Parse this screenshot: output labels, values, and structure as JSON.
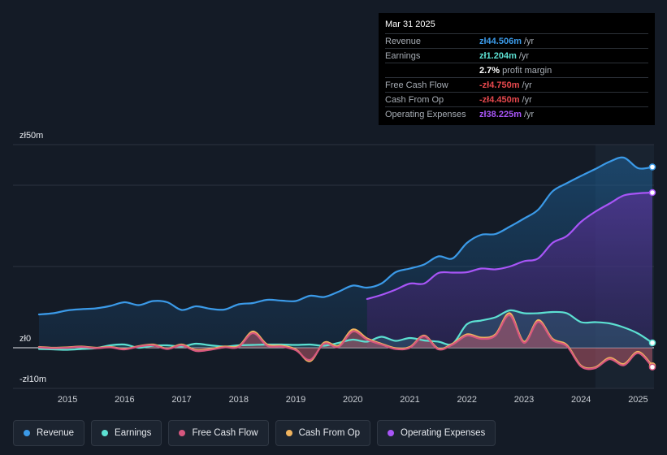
{
  "chart_data": {
    "type": "area",
    "currency_prefix": "zł",
    "y_axis": {
      "top_label": "zł50m",
      "zero_label": "zł0",
      "bottom_label": "-zł10m",
      "ylim": [
        -10,
        50
      ]
    },
    "x_axis": {
      "ticks": [
        "2015",
        "2016",
        "2017",
        "2018",
        "2019",
        "2020",
        "2021",
        "2022",
        "2023",
        "2024",
        "2025"
      ],
      "xlim": [
        2014.5,
        2025.25
      ]
    },
    "highlight_start": 2024.25,
    "colors": {
      "revenue": "#3b9ae8",
      "earnings": "#5ce0d2",
      "fcf": "#d6577f",
      "cfo": "#f0b35e",
      "opex": "#a855f7"
    },
    "series": [
      {
        "key": "revenue",
        "name": "Revenue",
        "x": [
          2014.5,
          2014.75,
          2015,
          2015.25,
          2015.5,
          2015.75,
          2016,
          2016.25,
          2016.5,
          2016.75,
          2017,
          2017.25,
          2017.5,
          2017.75,
          2018,
          2018.25,
          2018.5,
          2018.75,
          2019,
          2019.25,
          2019.5,
          2019.75,
          2020,
          2020.25,
          2020.5,
          2020.75,
          2021,
          2021.25,
          2021.5,
          2021.75,
          2022,
          2022.25,
          2022.5,
          2022.75,
          2023,
          2023.25,
          2023.5,
          2023.75,
          2024,
          2024.25,
          2024.5,
          2024.75,
          2025,
          2025.25
        ],
        "values": [
          8.2,
          8.5,
          9.2,
          9.5,
          9.7,
          10.3,
          11.2,
          10.5,
          11.5,
          11.2,
          9.3,
          10.2,
          9.6,
          9.4,
          10.7,
          11.0,
          11.8,
          11.6,
          11.5,
          12.8,
          12.5,
          13.8,
          15.3,
          14.8,
          15.8,
          18.6,
          19.5,
          20.5,
          22.5,
          22.0,
          25.8,
          27.8,
          28.0,
          29.8,
          31.8,
          34.0,
          38.5,
          40.5,
          42.3,
          44.0,
          45.8,
          46.8,
          44.2,
          44.5
        ]
      },
      {
        "key": "opex",
        "name": "Operating Expenses",
        "x": [
          2020.25,
          2020.5,
          2020.75,
          2021,
          2021.25,
          2021.5,
          2021.75,
          2022,
          2022.25,
          2022.5,
          2022.75,
          2023,
          2023.25,
          2023.5,
          2023.75,
          2024,
          2024.25,
          2024.5,
          2024.75,
          2025,
          2025.25
        ],
        "values": [
          12.0,
          13.0,
          14.3,
          15.8,
          15.8,
          18.4,
          18.5,
          18.6,
          19.5,
          19.3,
          20.0,
          21.3,
          22.0,
          25.8,
          27.5,
          31.0,
          33.5,
          35.5,
          37.5,
          38.0,
          38.2
        ]
      },
      {
        "key": "earnings",
        "name": "Earnings",
        "x": [
          2014.5,
          2014.75,
          2015,
          2015.25,
          2015.5,
          2015.75,
          2016,
          2016.25,
          2016.5,
          2016.75,
          2017,
          2017.25,
          2017.5,
          2017.75,
          2018,
          2018.25,
          2018.5,
          2018.75,
          2019,
          2019.25,
          2019.5,
          2019.75,
          2020,
          2020.25,
          2020.5,
          2020.75,
          2021,
          2021.25,
          2021.5,
          2021.75,
          2022,
          2022.25,
          2022.5,
          2022.75,
          2023,
          2023.25,
          2023.5,
          2023.75,
          2024,
          2024.25,
          2024.5,
          2024.75,
          2025,
          2025.25
        ],
        "values": [
          -0.3,
          -0.4,
          -0.5,
          -0.3,
          -0.1,
          0.6,
          0.8,
          0.0,
          0.5,
          0.6,
          0.3,
          1.0,
          0.6,
          0.3,
          0.6,
          0.7,
          0.8,
          0.8,
          0.7,
          0.8,
          0.5,
          1.2,
          2.0,
          1.5,
          2.7,
          1.7,
          2.4,
          1.8,
          1.5,
          1.0,
          5.8,
          6.7,
          7.5,
          9.2,
          8.5,
          8.5,
          8.8,
          8.5,
          6.3,
          6.3,
          6.0,
          5.0,
          3.5,
          1.2
        ]
      },
      {
        "key": "cfo",
        "name": "Cash From Op",
        "x": [
          2014.5,
          2014.75,
          2015,
          2015.25,
          2015.5,
          2015.75,
          2016,
          2016.25,
          2016.5,
          2016.75,
          2017,
          2017.25,
          2017.5,
          2017.75,
          2018,
          2018.25,
          2018.5,
          2018.75,
          2019,
          2019.25,
          2019.5,
          2019.75,
          2020,
          2020.25,
          2020.5,
          2020.75,
          2021,
          2021.25,
          2021.5,
          2021.75,
          2022,
          2022.25,
          2022.5,
          2022.75,
          2023,
          2023.25,
          2023.5,
          2023.75,
          2024,
          2024.25,
          2024.5,
          2024.75,
          2025,
          2025.25
        ],
        "values": [
          0.2,
          0.0,
          0.1,
          0.3,
          0.0,
          0.2,
          -0.3,
          0.4,
          0.8,
          -0.2,
          0.8,
          -0.6,
          -0.3,
          0.3,
          0.4,
          4.0,
          0.8,
          0.5,
          -0.4,
          -3.3,
          1.3,
          0.5,
          4.5,
          2.3,
          1.0,
          -0.1,
          0.2,
          3.0,
          -0.2,
          1.0,
          3.3,
          2.5,
          3.3,
          8.5,
          1.5,
          6.8,
          2.2,
          0.7,
          -4.4,
          -4.8,
          -2.5,
          -4.0,
          -1.0,
          -4.45
        ]
      },
      {
        "key": "fcf",
        "name": "Free Cash Flow",
        "x": [
          2014.5,
          2014.75,
          2015,
          2015.25,
          2015.5,
          2015.75,
          2016,
          2016.25,
          2016.5,
          2016.75,
          2017,
          2017.25,
          2017.5,
          2017.75,
          2018,
          2018.25,
          2018.5,
          2018.75,
          2019,
          2019.25,
          2019.5,
          2019.75,
          2020,
          2020.25,
          2020.5,
          2020.75,
          2021,
          2021.25,
          2021.5,
          2021.75,
          2022,
          2022.25,
          2022.5,
          2022.75,
          2023,
          2023.25,
          2023.5,
          2023.75,
          2024,
          2024.25,
          2024.5,
          2024.75,
          2025,
          2025.25
        ],
        "values": [
          0.1,
          -0.1,
          0.0,
          0.2,
          -0.1,
          0.1,
          -0.4,
          0.3,
          0.6,
          -0.3,
          0.6,
          -0.8,
          -0.5,
          0.1,
          0.2,
          3.6,
          0.5,
          0.3,
          -0.6,
          -3.0,
          1.0,
          0.2,
          4.0,
          2.0,
          0.8,
          -0.3,
          0.0,
          2.8,
          -0.4,
          0.8,
          3.0,
          2.2,
          3.0,
          8.0,
          1.2,
          6.4,
          1.9,
          0.4,
          -4.6,
          -5.0,
          -2.8,
          -4.3,
          -1.3,
          -4.75
        ]
      }
    ]
  },
  "tooltip": {
    "date": "Mar 31 2025",
    "rows": [
      {
        "label": "Revenue",
        "value": "zł44.506m",
        "unit": "/yr",
        "color": "#3b9ae8"
      },
      {
        "label": "Earnings",
        "value": "zł1.204m",
        "unit": "/yr",
        "color": "#5ce0d2"
      },
      {
        "label": "",
        "value": "2.7%",
        "unit": "profit margin",
        "color": "#ffffff"
      },
      {
        "label": "Free Cash Flow",
        "value": "-zł4.750m",
        "unit": "/yr",
        "color": "#e6484d"
      },
      {
        "label": "Cash From Op",
        "value": "-zł4.450m",
        "unit": "/yr",
        "color": "#e6484d"
      },
      {
        "label": "Operating Expenses",
        "value": "zł38.225m",
        "unit": "/yr",
        "color": "#a855f7"
      }
    ]
  },
  "legend": [
    {
      "label": "Revenue",
      "color": "#3b9ae8"
    },
    {
      "label": "Earnings",
      "color": "#5ce0d2"
    },
    {
      "label": "Free Cash Flow",
      "color": "#d6577f"
    },
    {
      "label": "Cash From Op",
      "color": "#f0b35e"
    },
    {
      "label": "Operating Expenses",
      "color": "#a855f7"
    }
  ]
}
